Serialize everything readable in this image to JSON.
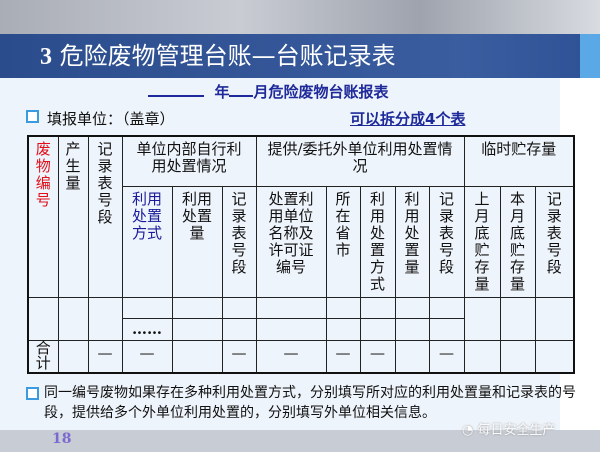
{
  "slide": {
    "title_number": "3",
    "title_text": "危险废物管理台账—台账记录表",
    "subtitle_year": "年",
    "subtitle_rest": "月危险废物台账报表",
    "fill_unit": "填报单位：（盖章）",
    "split_note": "可以拆分成4个表",
    "page_number": "18",
    "watermark": "每日安全生产",
    "note": "同一编号废物如果存在多种利用处置方式，分别填写所对应的利用处置量和记录表的号段，提供给多个外单位利用处置的，分别填写外单位相关信息。"
  },
  "table": {
    "h_waste_id": "废物编号",
    "h_generated": "产生量",
    "h_record_no": "记录表号段",
    "g_internal": "单位内部自行利用处置情况",
    "g_external": "提供/委托外单位利用处置情况",
    "g_storage": "临时贮存量",
    "sub": [
      "利用处置方式",
      "利用处置量",
      "记录表号段",
      "处置利用单位名称及许可证编号",
      "所在省市",
      "利用处置方式",
      "利用处置量",
      "记录表号段",
      "上月底贮存量",
      "本月底贮存量",
      "记录表号段"
    ],
    "ellipsis": "……",
    "total": "合计",
    "dash": "—"
  },
  "colors": {
    "title_band": "#2b4c8c",
    "waste_id_text": "#e0101a",
    "method_text": "#1a1a9a",
    "subtitle_text": "#1f2a9a",
    "bullet": "#3a9be0"
  }
}
